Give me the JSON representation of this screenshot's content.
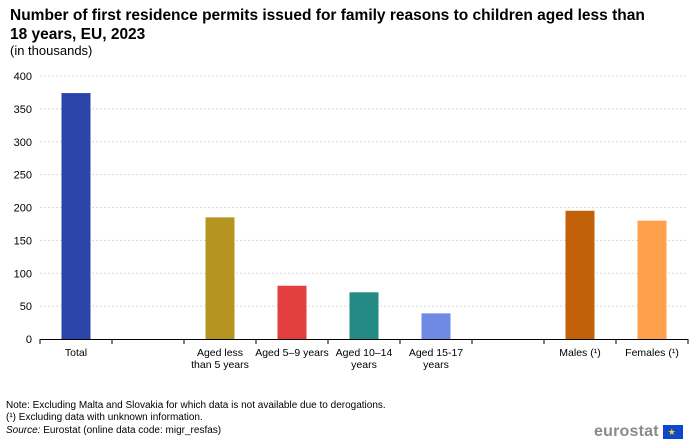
{
  "title": "Number of first residence permits issued for family reasons to children aged less than 18 years, EU, 2023",
  "subtitle": "(in thousands)",
  "chart_data": {
    "type": "bar",
    "categories": [
      {
        "lines": [
          "Total"
        ]
      },
      {
        "lines": [
          ""
        ]
      },
      {
        "lines": [
          "Aged less",
          "than 5 years"
        ]
      },
      {
        "lines": [
          "Aged 5–9 years"
        ]
      },
      {
        "lines": [
          "Aged 10–14",
          "years"
        ]
      },
      {
        "lines": [
          "Aged 15-17",
          "years"
        ]
      },
      {
        "lines": [
          ""
        ]
      },
      {
        "lines": [
          "Males (¹)"
        ]
      },
      {
        "lines": [
          "Females (¹)"
        ]
      }
    ],
    "values": [
      374,
      null,
      185,
      81,
      71,
      39,
      null,
      195,
      180
    ],
    "colors": [
      "#2a44a9",
      null,
      "#b5951f",
      "#e23e3e",
      "#238a85",
      "#6f8ae4",
      null,
      "#c26109",
      "#ffa04a"
    ],
    "yticks": [
      0,
      50,
      100,
      150,
      200,
      250,
      300,
      350,
      400
    ],
    "ylim": [
      0,
      400
    ],
    "grid": true
  },
  "notes": {
    "note": "Note: Excluding Malta and Slovakia for which data is not available due to derogations.",
    "footnote": "(¹) Excluding data with unknown information.",
    "source_label": "Source:",
    "source_text": " Eurostat (online data code: migr_resfas)"
  },
  "logo": {
    "text": "eurostat",
    "flag_icon": "eu-flag-icon",
    "stars": "★"
  }
}
